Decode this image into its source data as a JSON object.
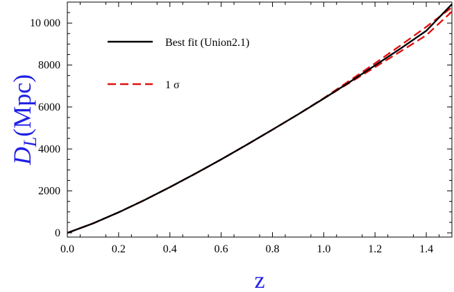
{
  "chart_data": {
    "type": "line",
    "title": "",
    "xlabel": "z",
    "ylabel": {
      "main": "D",
      "sub": "L",
      "rest": "(Mpc)"
    },
    "xlim": [
      0,
      1.5
    ],
    "ylim": [
      -200,
      11000
    ],
    "xticks": [
      0.0,
      0.2,
      0.4,
      0.6,
      0.8,
      1.0,
      1.2,
      1.4
    ],
    "xtick_labels": [
      "0.0",
      "0.2",
      "0.4",
      "0.6",
      "0.8",
      "1.0",
      "1.2",
      "1.4"
    ],
    "yticks": [
      0,
      2000,
      4000,
      6000,
      8000,
      10000
    ],
    "ytick_labels": [
      "0",
      "2000",
      "4000",
      "6000",
      "8000",
      "10 000"
    ],
    "grid": false,
    "legend_position": "top-left",
    "series": [
      {
        "name": "Best fit (Union2.1)",
        "color": "#000000",
        "style": "solid",
        "x": [
          0.0,
          0.1,
          0.2,
          0.3,
          0.4,
          0.5,
          0.6,
          0.7,
          0.8,
          0.9,
          1.0,
          1.1,
          1.2,
          1.3,
          1.4,
          1.5
        ],
        "y": [
          0,
          450,
          980,
          1560,
          2180,
          2830,
          3500,
          4200,
          4920,
          5650,
          6400,
          7180,
          7980,
          8790,
          9630,
          10900
        ]
      },
      {
        "name": "1 σ",
        "color": "#e01010",
        "style": "dashed",
        "x": [
          0.0,
          0.1,
          0.2,
          0.3,
          0.4,
          0.5,
          0.6,
          0.7,
          0.8,
          0.9,
          1.0,
          1.1,
          1.2,
          1.3,
          1.4,
          1.5
        ],
        "y": [
          0,
          450,
          980,
          1560,
          2180,
          2830,
          3500,
          4200,
          4920,
          5650,
          6420,
          7250,
          8080,
          8940,
          9820,
          10750
        ]
      },
      {
        "name": "",
        "color": "#e01010",
        "style": "dashed",
        "x": [
          0.0,
          0.1,
          0.2,
          0.3,
          0.4,
          0.5,
          0.6,
          0.7,
          0.8,
          0.9,
          1.0,
          1.1,
          1.2,
          1.3,
          1.4,
          1.5
        ],
        "y": [
          0,
          450,
          980,
          1560,
          2180,
          2830,
          3500,
          4200,
          4920,
          5650,
          6400,
          7150,
          7900,
          8650,
          9420,
          10550
        ]
      }
    ]
  }
}
